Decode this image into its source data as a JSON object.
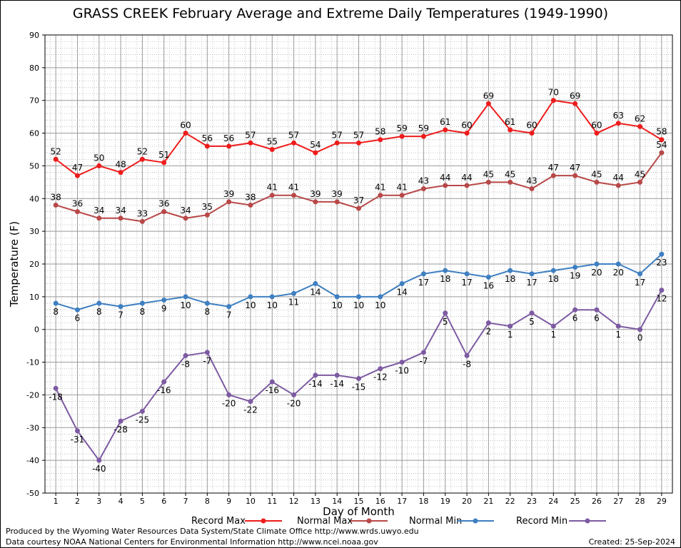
{
  "chart_data": {
    "type": "line",
    "title": "GRASS CREEK February Average and Extreme Daily Temperatures (1949-1990)",
    "xlabel": "Day of Month",
    "ylabel": "Temperature (F)",
    "ylim": [
      -50,
      90
    ],
    "yticks": [
      -50,
      -40,
      -30,
      -20,
      -10,
      0,
      10,
      20,
      30,
      40,
      50,
      60,
      70,
      80,
      90
    ],
    "x": [
      1,
      2,
      3,
      4,
      5,
      6,
      7,
      8,
      9,
      10,
      11,
      12,
      13,
      14,
      15,
      16,
      17,
      18,
      19,
      20,
      21,
      22,
      23,
      24,
      25,
      26,
      27,
      28,
      29
    ],
    "grid": true,
    "legend_position": "bottom",
    "series": [
      {
        "name": "Record Max",
        "color": "#ee1c1c",
        "label_position": "above",
        "values": [
          52,
          47,
          50,
          48,
          52,
          51,
          60,
          56,
          56,
          57,
          55,
          57,
          54,
          57,
          57,
          58,
          59,
          59,
          61,
          60,
          69,
          61,
          60,
          70,
          69,
          60,
          63,
          62,
          58
        ]
      },
      {
        "name": "Normal Max",
        "color": "#b84848",
        "label_position": "above",
        "values": [
          38,
          36,
          34,
          34,
          33,
          36,
          34,
          35,
          39,
          38,
          41,
          41,
          39,
          39,
          37,
          41,
          41,
          43,
          44,
          44,
          45,
          45,
          43,
          47,
          47,
          45,
          44,
          45,
          54
        ]
      },
      {
        "name": "Normal Min",
        "color": "#3e7fc1",
        "label_position": "below",
        "values": [
          8,
          6,
          8,
          7,
          8,
          9,
          10,
          8,
          7,
          10,
          10,
          11,
          14,
          10,
          10,
          10,
          14,
          17,
          18,
          17,
          16,
          18,
          17,
          18,
          19,
          20,
          20,
          17,
          23
        ]
      },
      {
        "name": "Record Min",
        "color": "#7d5aa2",
        "label_position": "below",
        "values": [
          -18,
          -31,
          -40,
          -28,
          -25,
          -16,
          -8,
          -7,
          -20,
          -22,
          -16,
          -20,
          -14,
          -14,
          -15,
          -12,
          -10,
          -7,
          5,
          -8,
          2,
          1,
          5,
          1,
          6,
          6,
          1,
          0,
          12
        ]
      }
    ]
  },
  "footer": {
    "produced_by": "Produced by the Wyoming Water Resources Data System/State Climate Office http://www.wrds.uwyo.edu",
    "courtesy": "Data courtesy NOAA National Centers for Environmental Information http://www.ncei.noaa.gov",
    "created": "Created:  25-Sep-2024"
  }
}
